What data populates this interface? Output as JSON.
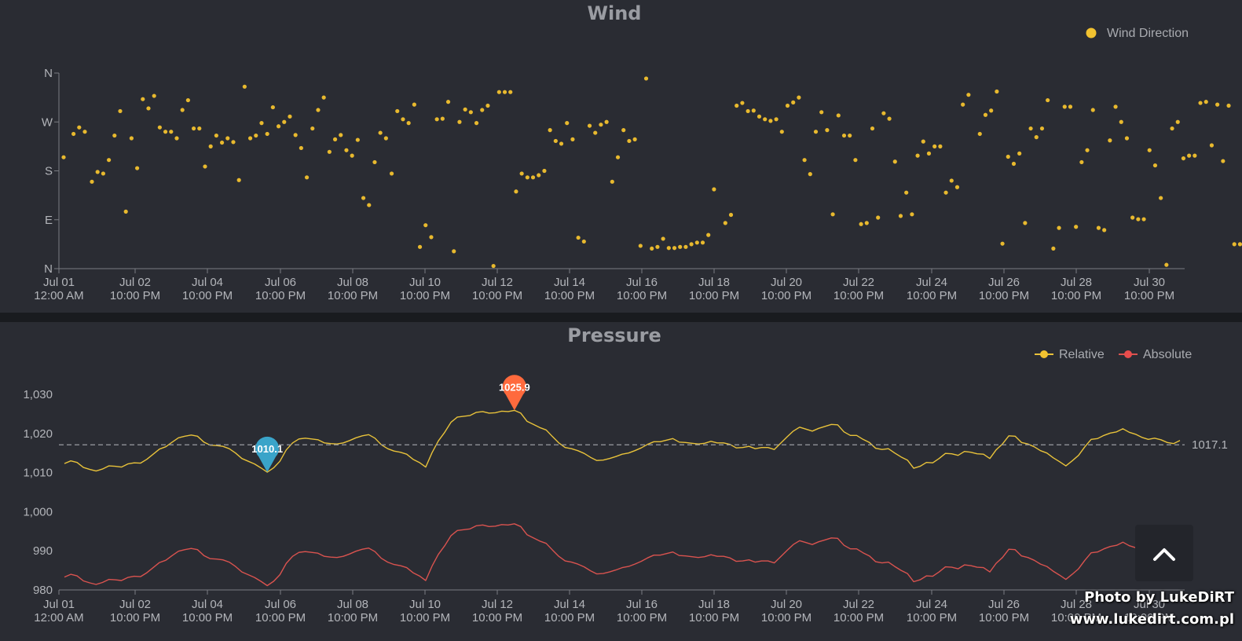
{
  "watermark": {
    "line1": "Photo by LukeDiRT",
    "line2": "www.lukedirt.com.pl"
  },
  "colors": {
    "background": "#2a2c33",
    "wind_point": "#e8b92e",
    "relative": "#e8c23a",
    "absolute": "#d9534f",
    "min_pin": "#3aa4c9",
    "max_pin": "#ff6a3d",
    "average": "#9a9ca2"
  },
  "x_axis_labels": [
    [
      "Jul 01",
      "12:00 AM"
    ],
    [
      "Jul 02",
      "10:00 PM"
    ],
    [
      "Jul 04",
      "10:00 PM"
    ],
    [
      "Jul 06",
      "10:00 PM"
    ],
    [
      "Jul 08",
      "10:00 PM"
    ],
    [
      "Jul 10",
      "10:00 PM"
    ],
    [
      "Jul 12",
      "10:00 PM"
    ],
    [
      "Jul 14",
      "10:00 PM"
    ],
    [
      "Jul 16",
      "10:00 PM"
    ],
    [
      "Jul 18",
      "10:00 PM"
    ],
    [
      "Jul 20",
      "10:00 PM"
    ],
    [
      "Jul 22",
      "10:00 PM"
    ],
    [
      "Jul 24",
      "10:00 PM"
    ],
    [
      "Jul 26",
      "10:00 PM"
    ],
    [
      "Jul 28",
      "10:00 PM"
    ],
    [
      "Jul 30",
      "10:00 PM"
    ]
  ],
  "chart_data": [
    {
      "type": "scatter",
      "title": "Wind",
      "series": [
        {
          "name": "Wind Direction",
          "color": "#e8b92e"
        }
      ],
      "y_ticks": [
        "N",
        "E",
        "S",
        "W",
        "N"
      ],
      "ylim": [
        0,
        360
      ],
      "points": [
        [
          0.0,
          205
        ],
        [
          0.35,
          248
        ],
        [
          0.55,
          260
        ],
        [
          0.75,
          252
        ],
        [
          1.0,
          160
        ],
        [
          1.2,
          178
        ],
        [
          1.4,
          175
        ],
        [
          1.6,
          200
        ],
        [
          1.8,
          245
        ],
        [
          2.0,
          290
        ],
        [
          2.2,
          105
        ],
        [
          2.4,
          240
        ],
        [
          2.6,
          185
        ],
        [
          2.8,
          312
        ],
        [
          3.0,
          295
        ],
        [
          3.2,
          318
        ],
        [
          3.4,
          260
        ],
        [
          3.6,
          252
        ],
        [
          3.8,
          252
        ],
        [
          4.0,
          240
        ],
        [
          4.2,
          292
        ],
        [
          4.4,
          310
        ],
        [
          4.6,
          258
        ],
        [
          4.8,
          258
        ],
        [
          5.0,
          188
        ],
        [
          5.2,
          225
        ],
        [
          5.4,
          245
        ],
        [
          5.6,
          232
        ],
        [
          5.8,
          240
        ],
        [
          6.0,
          233
        ],
        [
          6.2,
          163
        ],
        [
          6.4,
          335
        ],
        [
          6.6,
          240
        ],
        [
          6.8,
          245
        ],
        [
          7.0,
          268
        ],
        [
          7.2,
          248
        ],
        [
          7.4,
          297
        ],
        [
          7.6,
          262
        ],
        [
          7.8,
          270
        ],
        [
          8.0,
          280
        ],
        [
          8.2,
          246
        ],
        [
          8.4,
          222
        ],
        [
          8.6,
          168
        ],
        [
          8.8,
          258
        ],
        [
          9.0,
          292
        ],
        [
          9.2,
          315
        ],
        [
          9.4,
          215
        ],
        [
          9.6,
          238
        ],
        [
          9.8,
          246
        ],
        [
          10.0,
          218
        ],
        [
          10.2,
          208
        ],
        [
          10.4,
          237
        ],
        [
          10.6,
          130
        ],
        [
          10.8,
          117
        ],
        [
          11.0,
          196
        ],
        [
          11.2,
          250
        ],
        [
          11.4,
          240
        ],
        [
          11.6,
          175
        ],
        [
          11.8,
          290
        ],
        [
          12.0,
          275
        ],
        [
          12.2,
          268
        ],
        [
          12.4,
          302
        ],
        [
          12.6,
          40
        ],
        [
          12.8,
          80
        ],
        [
          13.0,
          58
        ],
        [
          13.2,
          275
        ],
        [
          13.4,
          276
        ],
        [
          13.6,
          307
        ],
        [
          13.8,
          32
        ],
        [
          14.0,
          270
        ],
        [
          14.2,
          293
        ],
        [
          14.4,
          288
        ],
        [
          14.6,
          268
        ],
        [
          14.8,
          292
        ],
        [
          15.0,
          300
        ],
        [
          15.2,
          5
        ],
        [
          15.4,
          325
        ],
        [
          15.6,
          325
        ],
        [
          15.8,
          325
        ],
        [
          16.0,
          142
        ],
        [
          16.2,
          175
        ],
        [
          16.4,
          168
        ],
        [
          16.6,
          168
        ],
        [
          16.8,
          172
        ],
        [
          17.0,
          180
        ],
        [
          17.2,
          255
        ],
        [
          17.4,
          235
        ],
        [
          17.6,
          230
        ],
        [
          17.8,
          268
        ],
        [
          18.0,
          238
        ],
        [
          18.2,
          57
        ],
        [
          18.4,
          50
        ],
        [
          18.6,
          263
        ],
        [
          18.8,
          250
        ],
        [
          19.0,
          265
        ],
        [
          19.2,
          270
        ],
        [
          19.4,
          160
        ],
        [
          19.6,
          205
        ],
        [
          19.8,
          255
        ],
        [
          20.0,
          235
        ],
        [
          20.2,
          238
        ],
        [
          20.4,
          42
        ],
        [
          20.6,
          350
        ],
        [
          20.8,
          37
        ],
        [
          21.0,
          40
        ],
        [
          21.2,
          55
        ],
        [
          21.4,
          38
        ],
        [
          21.6,
          38
        ],
        [
          21.8,
          40
        ],
        [
          22.0,
          40
        ],
        [
          22.2,
          45
        ],
        [
          22.4,
          48
        ],
        [
          22.6,
          48
        ],
        [
          22.8,
          62
        ],
        [
          23.0,
          146
        ],
        [
          23.4,
          84
        ],
        [
          23.6,
          99
        ],
        [
          23.8,
          300
        ],
        [
          24.0,
          305
        ],
        [
          24.2,
          290
        ],
        [
          24.4,
          291
        ],
        [
          24.6,
          280
        ],
        [
          24.8,
          275
        ],
        [
          25.0,
          272
        ],
        [
          25.2,
          275
        ],
        [
          25.4,
          252
        ],
        [
          25.6,
          300
        ],
        [
          25.8,
          306
        ],
        [
          26.0,
          315
        ],
        [
          26.2,
          200
        ],
        [
          26.4,
          174
        ],
        [
          26.6,
          252
        ],
        [
          26.8,
          288
        ],
        [
          27.0,
          255
        ],
        [
          27.2,
          100
        ],
        [
          27.4,
          282
        ],
        [
          27.6,
          245
        ],
        [
          27.8,
          245
        ],
        [
          28.0,
          200
        ],
        [
          28.2,
          82
        ],
        [
          28.4,
          84
        ],
        [
          28.6,
          258
        ],
        [
          28.8,
          94
        ],
        [
          29.0,
          286
        ],
        [
          29.2,
          276
        ],
        [
          29.4,
          197
        ],
        [
          29.6,
          97
        ],
        [
          29.8,
          140
        ],
        [
          30.0,
          100
        ],
        [
          30.2,
          208
        ],
        [
          30.4,
          234
        ],
        [
          30.6,
          212
        ],
        [
          30.8,
          225
        ],
        [
          31.0,
          225
        ],
        [
          31.2,
          140
        ],
        [
          31.4,
          162
        ],
        [
          31.6,
          150
        ],
        [
          31.8,
          302
        ],
        [
          32.0,
          320
        ],
        [
          32.4,
          248
        ],
        [
          32.6,
          283
        ],
        [
          32.8,
          291
        ],
        [
          33.0,
          326
        ],
        [
          33.2,
          46
        ],
        [
          33.4,
          206
        ],
        [
          33.6,
          193
        ],
        [
          33.8,
          212
        ],
        [
          34.0,
          84
        ],
        [
          34.2,
          258
        ],
        [
          34.4,
          242
        ],
        [
          34.6,
          258
        ],
        [
          34.8,
          310
        ],
        [
          35.0,
          37
        ],
        [
          35.2,
          75
        ],
        [
          35.4,
          298
        ],
        [
          35.6,
          298
        ],
        [
          35.8,
          77
        ],
        [
          36.0,
          196
        ],
        [
          36.2,
          218
        ],
        [
          36.4,
          292
        ],
        [
          36.6,
          75
        ],
        [
          36.8,
          71
        ],
        [
          37.0,
          236
        ],
        [
          37.2,
          298
        ],
        [
          37.4,
          270
        ],
        [
          37.6,
          240
        ],
        [
          37.8,
          94
        ],
        [
          38.0,
          91
        ],
        [
          38.2,
          91
        ],
        [
          38.4,
          218
        ],
        [
          38.6,
          190
        ],
        [
          38.8,
          130
        ],
        [
          39.0,
          7
        ],
        [
          39.2,
          258
        ],
        [
          39.4,
          270
        ],
        [
          39.6,
          203
        ],
        [
          39.8,
          208
        ],
        [
          40.0,
          208
        ],
        [
          40.2,
          305
        ],
        [
          40.4,
          307
        ],
        [
          40.6,
          227
        ],
        [
          40.8,
          302
        ],
        [
          41.0,
          198
        ],
        [
          41.2,
          300
        ],
        [
          41.4,
          45
        ],
        [
          41.6,
          45
        ],
        [
          41.8,
          237
        ],
        [
          42.0,
          273
        ],
        [
          42.2,
          292
        ],
        [
          42.4,
          292
        ],
        [
          42.6,
          235
        ],
        [
          42.8,
          232
        ]
      ]
    },
    {
      "type": "line",
      "title": "Pressure",
      "series": [
        {
          "name": "Relative",
          "color": "#e8c23a",
          "values": [
            1012.3,
            1013.0,
            1012.6,
            1011.3,
            1010.8,
            1010.4,
            1010.9,
            1011.7,
            1011.6,
            1011.4,
            1012.2,
            1012.5,
            1012.4,
            1013.4,
            1014.7,
            1016.0,
            1016.6,
            1017.8,
            1018.9,
            1019.3,
            1019.6,
            1019.3,
            1017.8,
            1017.0,
            1016.9,
            1016.7,
            1016.1,
            1015.0,
            1013.6,
            1012.9,
            1012.2,
            1011.2,
            1010.1,
            1011.2,
            1012.9,
            1015.8,
            1017.6,
            1018.6,
            1018.8,
            1018.6,
            1018.4,
            1017.6,
            1017.4,
            1017.3,
            1017.6,
            1018.2,
            1018.9,
            1019.4,
            1019.7,
            1018.8,
            1017.1,
            1016.1,
            1015.5,
            1015.2,
            1014.7,
            1013.4,
            1012.6,
            1011.4,
            1015.1,
            1018.1,
            1020.3,
            1022.9,
            1024.2,
            1024.4,
            1024.6,
            1025.4,
            1025.6,
            1025.2,
            1025.3,
            1025.7,
            1025.6,
            1025.9,
            1025.2,
            1023.1,
            1022.3,
            1021.5,
            1020.9,
            1019.2,
            1017.6,
            1016.4,
            1016.1,
            1015.6,
            1014.9,
            1013.9,
            1013.1,
            1013.2,
            1013.6,
            1014.1,
            1014.7,
            1015.0,
            1015.6,
            1016.3,
            1017.2,
            1017.9,
            1017.9,
            1018.3,
            1018.7,
            1017.8,
            1017.7,
            1017.5,
            1017.3,
            1017.5,
            1018.0,
            1017.6,
            1017.6,
            1017.2,
            1016.3,
            1016.4,
            1016.7,
            1016.1,
            1016.4,
            1016.4,
            1015.9,
            1017.5,
            1019.1,
            1020.6,
            1021.6,
            1021.1,
            1020.6,
            1021.3,
            1021.8,
            1022.3,
            1022.2,
            1020.4,
            1019.5,
            1019.5,
            1018.5,
            1017.7,
            1016.2,
            1015.9,
            1016.1,
            1015.0,
            1014.0,
            1013.2,
            1011.1,
            1011.6,
            1012.6,
            1012.5,
            1013.6,
            1014.9,
            1014.8,
            1014.4,
            1015.4,
            1015.2,
            1014.8,
            1014.7,
            1013.6,
            1015.8,
            1017.3,
            1019.4,
            1019.3,
            1017.7,
            1017.3,
            1016.6,
            1015.6,
            1015.0,
            1013.8,
            1012.8,
            1011.7,
            1013.0,
            1014.4,
            1016.6,
            1018.5,
            1018.7,
            1019.5,
            1020.1,
            1020.4,
            1021.2,
            1020.3,
            1019.8,
            1019.0,
            1018.5,
            1018.8,
            1018.4,
            1017.7,
            1017.4,
            1018.2
          ]
        },
        {
          "name": "Absolute",
          "color": "#d9534f",
          "values": [
            983.3,
            984.0,
            983.6,
            982.3,
            981.8,
            981.4,
            981.9,
            982.7,
            982.6,
            982.4,
            983.2,
            983.5,
            983.4,
            984.4,
            985.7,
            987.0,
            987.6,
            988.8,
            989.9,
            990.3,
            990.6,
            990.3,
            988.8,
            988.0,
            987.9,
            987.7,
            987.1,
            986.0,
            984.6,
            983.9,
            983.2,
            982.2,
            981.1,
            982.2,
            983.9,
            986.8,
            988.6,
            989.6,
            989.8,
            989.6,
            989.4,
            988.6,
            988.4,
            988.3,
            988.6,
            989.2,
            989.9,
            990.4,
            990.7,
            989.8,
            988.1,
            987.1,
            986.5,
            986.2,
            985.7,
            984.4,
            983.6,
            982.4,
            986.1,
            989.1,
            991.3,
            993.9,
            995.2,
            995.4,
            995.6,
            996.4,
            996.6,
            996.2,
            996.3,
            996.7,
            996.6,
            996.9,
            996.2,
            994.1,
            993.3,
            992.5,
            991.9,
            990.2,
            988.6,
            987.4,
            987.1,
            986.6,
            985.9,
            984.9,
            984.1,
            984.2,
            984.6,
            985.1,
            985.7,
            986.0,
            986.6,
            987.3,
            988.2,
            988.9,
            988.9,
            989.3,
            989.7,
            988.8,
            988.7,
            988.5,
            988.3,
            988.5,
            989.0,
            988.6,
            988.6,
            988.2,
            987.3,
            987.4,
            987.7,
            987.1,
            987.4,
            987.4,
            986.9,
            988.5,
            990.1,
            991.6,
            992.6,
            992.1,
            991.6,
            992.3,
            992.8,
            993.3,
            993.2,
            991.4,
            990.5,
            990.5,
            989.5,
            988.7,
            987.2,
            986.9,
            987.1,
            986.0,
            985.0,
            984.2,
            982.1,
            982.6,
            983.6,
            983.5,
            984.6,
            985.9,
            985.8,
            985.4,
            986.4,
            986.2,
            985.8,
            985.7,
            984.6,
            986.8,
            988.3,
            990.4,
            990.3,
            988.7,
            988.3,
            987.6,
            986.6,
            986.0,
            984.8,
            983.8,
            982.7,
            984.0,
            985.4,
            987.6,
            989.5,
            989.7,
            990.5,
            991.1,
            991.4,
            992.2,
            991.3,
            990.8,
            990.0,
            989.5,
            989.8,
            989.4,
            988.7,
            988.4,
            989.2
          ]
        }
      ],
      "y_ticks": [
        980,
        990,
        1000,
        1010,
        1020,
        1030
      ],
      "y_tick_labels": [
        "980",
        "990",
        "1,000",
        "1,010",
        "1,020",
        "1,030"
      ],
      "ylim": [
        980,
        1030
      ],
      "markers": {
        "min": "1010.1",
        "max": "1025.9",
        "average": "1017.1"
      }
    }
  ]
}
